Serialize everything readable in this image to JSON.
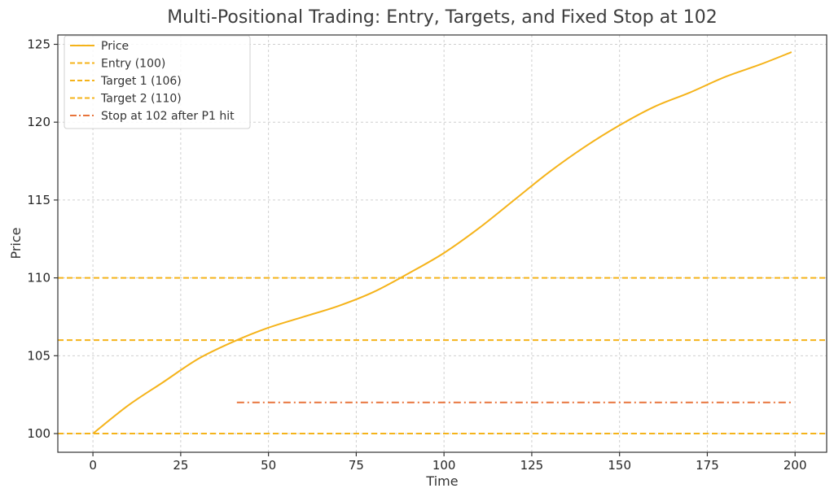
{
  "chart_data": {
    "type": "line",
    "title": "Multi-Positional Trading: Entry, Targets, and Fixed Stop at 102",
    "xlabel": "Time",
    "ylabel": "Price",
    "xlim": [
      -10,
      209
    ],
    "ylim": [
      98.8,
      125.6
    ],
    "xticks": [
      0,
      25,
      50,
      75,
      100,
      125,
      150,
      175,
      200
    ],
    "yticks": [
      100,
      105,
      110,
      115,
      120,
      125
    ],
    "grid": true,
    "legend_position": "top-left",
    "series": [
      {
        "name": "Price",
        "style": "solid",
        "color": "#f5b31a",
        "x": [
          0,
          10,
          20,
          30,
          40,
          50,
          60,
          70,
          80,
          90,
          100,
          110,
          120,
          130,
          140,
          150,
          160,
          170,
          180,
          190,
          199
        ],
        "y": [
          100.0,
          101.8,
          103.3,
          104.8,
          105.9,
          106.8,
          107.5,
          108.2,
          109.1,
          110.3,
          111.6,
          113.2,
          115.0,
          116.8,
          118.4,
          119.8,
          121.0,
          121.9,
          122.9,
          123.7,
          124.5
        ]
      },
      {
        "name": "Entry (100)",
        "style": "dashed",
        "color": "#f5b31a",
        "x": [
          -10,
          209
        ],
        "y": [
          100,
          100
        ]
      },
      {
        "name": "Target 1 (106)",
        "style": "dashed",
        "color": "#f5b31a",
        "x": [
          -10,
          209
        ],
        "y": [
          106,
          106
        ]
      },
      {
        "name": "Target 2 (110)",
        "style": "dashed",
        "color": "#f5b31a",
        "x": [
          -10,
          209
        ],
        "y": [
          110,
          110
        ]
      },
      {
        "name": "Stop at 102 after P1 hit",
        "style": "dashdot",
        "color": "#e8743b",
        "x": [
          41,
          199
        ],
        "y": [
          102,
          102
        ]
      }
    ]
  }
}
